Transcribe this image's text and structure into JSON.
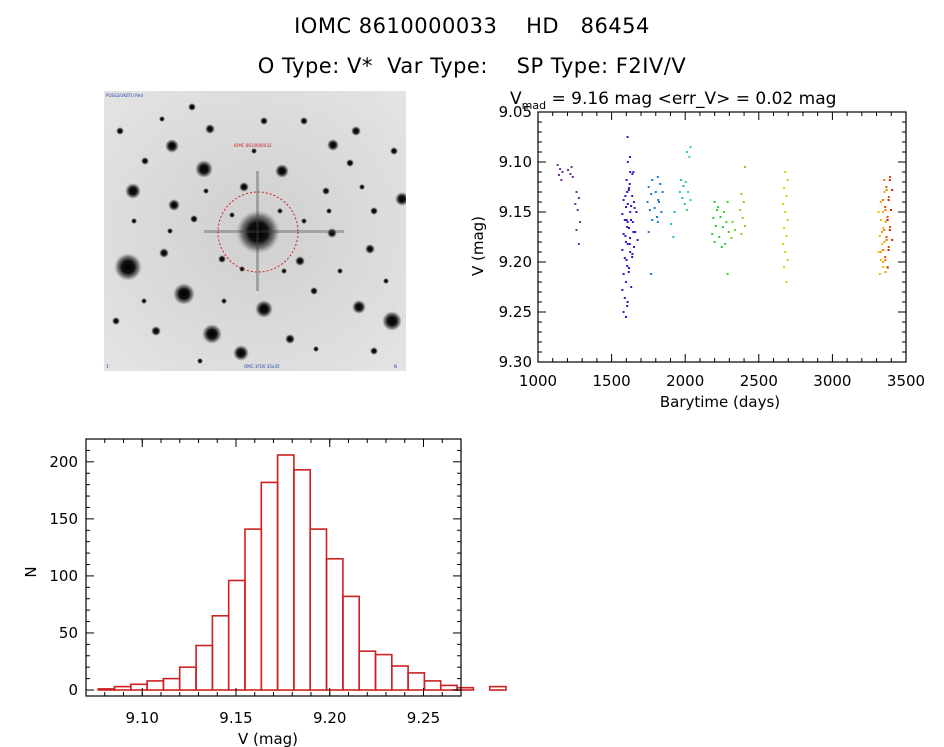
{
  "header": {
    "title_line1": "IOMC 8610000033    HD   86454",
    "title_line2": "O Type: V*  Var Type:    SP Type: F2IV/V"
  },
  "finder_chart": {
    "label_top_left": "POSS2/UKSTU Red",
    "label_target": "IOMC 8610000033",
    "label_bottom_left": "1'",
    "label_bottom_center": "OMC-1FOV 35x35'",
    "label_bottom_right": "N",
    "labels_are_illegible_tiny": true
  },
  "lightcurve_panel": {
    "annotation": {
      "prefix": "V",
      "subscript": "mad",
      "suffix": " = 9.16 mag <err_V> = 0.02 mag"
    }
  },
  "chart_data": [
    {
      "type": "scatter",
      "title": "V_mad = 9.16 mag <err_V> = 0.02 mag",
      "xlabel": "Barytime (days)",
      "ylabel": "V (mag)",
      "xlim": [
        1000,
        3500
      ],
      "ylim": [
        9.05,
        9.3
      ],
      "y_inverted": true,
      "xticks": [
        1000,
        1500,
        2000,
        2500,
        3000,
        3500
      ],
      "xtick_labels": [
        "1000",
        "1500",
        "2000",
        "2500",
        "3000",
        "3500"
      ],
      "yticks": [
        9.05,
        9.1,
        9.15,
        9.2,
        9.25,
        9.3
      ],
      "ytick_labels": [
        "9.05",
        "9.10",
        "9.15",
        "9.20",
        "9.25",
        "9.30"
      ],
      "clusters": [
        {
          "x": 1150,
          "y": [
            9.103,
            9.107,
            9.11,
            9.113,
            9.118
          ],
          "color": "#6b2f8e"
        },
        {
          "x": 1220,
          "y": [
            9.105,
            9.108,
            9.112,
            9.115
          ],
          "color": "#6b2f8e"
        },
        {
          "x": 1270,
          "y": [
            9.13,
            9.136,
            9.142,
            9.148,
            9.16,
            9.168,
            9.182
          ],
          "color": "#6b2f8e"
        },
        {
          "x": 1590,
          "y": [
            9.13,
            9.138,
            9.145,
            9.152,
            9.158,
            9.165,
            9.172,
            9.18,
            9.188,
            9.196,
            9.204,
            9.212,
            9.22,
            9.228,
            9.236,
            9.244,
            9.25,
            9.255
          ],
          "color": "#3b10c8"
        },
        {
          "x": 1610,
          "y": [
            9.1,
            9.11,
            9.118,
            9.126,
            9.134,
            9.142,
            9.15,
            9.158,
            9.166,
            9.174,
            9.182,
            9.19,
            9.198,
            9.206
          ],
          "color": "#3b10c8"
        },
        {
          "x": 1625,
          "y": [
            9.075,
            9.095,
            9.112,
            9.128,
            9.144,
            9.16,
            9.176,
            9.192,
            9.21,
            9.225,
            9.24
          ],
          "color": "#3b10c8"
        },
        {
          "x": 1640,
          "y": [
            9.11,
            9.122,
            9.134,
            9.146,
            9.158,
            9.17,
            9.182,
            9.195
          ],
          "color": "#3b10c8"
        },
        {
          "x": 1660,
          "y": [
            9.14,
            9.15,
            9.16,
            9.17,
            9.178,
            9.185
          ],
          "color": "#3b10c8"
        },
        {
          "x": 1760,
          "y": [
            9.118,
            9.125,
            9.132,
            9.14,
            9.148,
            9.158,
            9.17,
            9.212
          ],
          "color": "#1a7ad0"
        },
        {
          "x": 1800,
          "y": [
            9.13,
            9.138,
            9.146,
            9.155
          ],
          "color": "#1a7ad0"
        },
        {
          "x": 1830,
          "y": [
            9.115,
            9.122,
            9.13,
            9.14,
            9.15,
            9.16
          ],
          "color": "#1a7ad0"
        },
        {
          "x": 1920,
          "y": [
            9.15,
            9.162,
            9.175
          ],
          "color": "#26b8cc"
        },
        {
          "x": 1980,
          "y": [
            9.118,
            9.124,
            9.13,
            9.136,
            9.142
          ],
          "color": "#26b8cc"
        },
        {
          "x": 2020,
          "y": [
            9.085,
            9.09,
            9.095,
            9.12,
            9.13,
            9.138,
            9.148
          ],
          "color": "#34d0a0"
        },
        {
          "x": 2200,
          "y": [
            9.14,
            9.148,
            9.156,
            9.164,
            9.172,
            9.18
          ],
          "color": "#2cc840"
        },
        {
          "x": 2240,
          "y": [
            9.145,
            9.155,
            9.165,
            9.175,
            9.185
          ],
          "color": "#2cc840"
        },
        {
          "x": 2280,
          "y": [
            9.14,
            9.15,
            9.16,
            9.17,
            9.182,
            9.212
          ],
          "color": "#4ccf2a"
        },
        {
          "x": 2330,
          "y": [
            9.16,
            9.168,
            9.176
          ],
          "color": "#6cd61f"
        },
        {
          "x": 2390,
          "y": [
            9.105,
            9.132,
            9.14,
            9.148,
            9.156,
            9.164,
            9.172
          ],
          "color": "#7cd618"
        },
        {
          "x": 2680,
          "y": [
            9.11,
            9.118,
            9.126,
            9.134,
            9.142,
            9.15,
            9.158,
            9.166,
            9.174,
            9.182,
            9.19,
            9.198,
            9.205,
            9.22
          ],
          "color": "#b6e600"
        },
        {
          "x": 3330,
          "y": [
            9.15,
            9.158,
            9.166,
            9.174,
            9.182,
            9.19,
            9.198,
            9.205,
            9.212
          ],
          "color": "#e8c000"
        },
        {
          "x": 3345,
          "y": [
            9.13,
            9.14,
            9.15,
            9.16,
            9.17,
            9.18,
            9.19,
            9.2,
            9.21
          ],
          "color": "#f0a000"
        },
        {
          "x": 3360,
          "y": [
            9.118,
            9.128,
            9.138,
            9.148,
            9.158,
            9.168,
            9.178,
            9.188,
            9.198,
            9.206
          ],
          "color": "#e87a00"
        },
        {
          "x": 3375,
          "y": [
            9.115,
            9.125,
            9.135,
            9.145,
            9.155,
            9.165,
            9.175,
            9.185,
            9.195,
            9.205
          ],
          "color": "#e05000"
        },
        {
          "x": 3390,
          "y": [
            9.118,
            9.128,
            9.138,
            9.148,
            9.158,
            9.168,
            9.178,
            9.188
          ],
          "color": "#cc2000"
        }
      ]
    },
    {
      "type": "bar",
      "subtype": "histogram",
      "title": "",
      "xlabel": "V (mag)",
      "ylabel": "N",
      "xlim": [
        9.07,
        9.27
      ],
      "ylim": [
        0,
        220
      ],
      "bin_width": 0.0087,
      "bin_start": 9.0765,
      "values": [
        1,
        3,
        5,
        8,
        10,
        20,
        39,
        65,
        96,
        141,
        182,
        206,
        193,
        141,
        115,
        82,
        34,
        31,
        21,
        15,
        8,
        4,
        2,
        0,
        3
      ],
      "xticks": [
        9.1,
        9.15,
        9.2,
        9.25
      ],
      "xtick_labels": [
        "9.10",
        "9.15",
        "9.20",
        "9.25"
      ],
      "yticks": [
        0,
        50,
        100,
        150,
        200
      ],
      "ytick_labels": [
        "0",
        "50",
        "100",
        "150",
        "200"
      ],
      "bar_color": "#cc2222"
    }
  ]
}
